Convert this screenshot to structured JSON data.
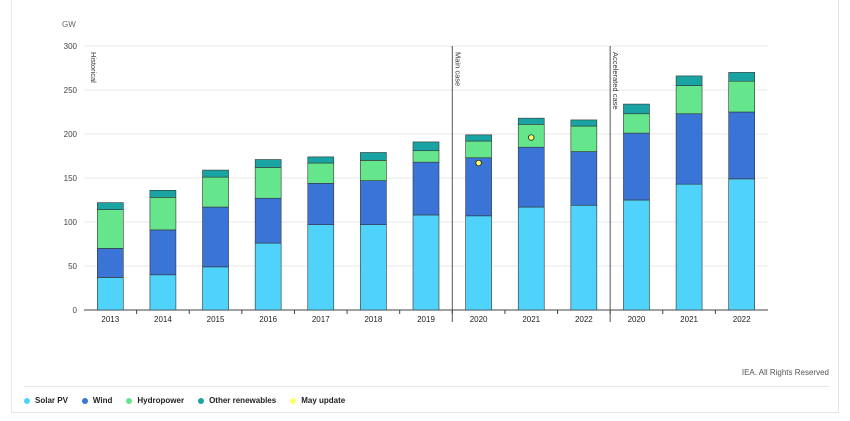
{
  "chart_data": {
    "type": "bar",
    "stacked": true,
    "ylabel": "GW",
    "ylim": [
      0,
      300
    ],
    "yticks": [
      0,
      50,
      100,
      150,
      200,
      250,
      300
    ],
    "grid": true,
    "legend_position": "bottom-left",
    "groups": [
      {
        "label": "Historical",
        "categories": [
          "2013",
          "2014",
          "2015",
          "2016",
          "2017",
          "2018",
          "2019"
        ]
      },
      {
        "label": "Main case",
        "categories": [
          "2020",
          "2021",
          "2022"
        ]
      },
      {
        "label": "Accelerated case",
        "categories": [
          "2020",
          "2021",
          "2022"
        ]
      }
    ],
    "categories": [
      "2013",
      "2014",
      "2015",
      "2016",
      "2017",
      "2018",
      "2019",
      "2020",
      "2021",
      "2022",
      "2020",
      "2021",
      "2022"
    ],
    "series": [
      {
        "name": "Solar PV",
        "color": "#4fd3fb",
        "values": [
          37,
          40,
          49,
          76,
          97,
          97,
          108,
          107,
          117,
          119,
          125,
          143,
          149
        ]
      },
      {
        "name": "Wind",
        "color": "#3a74d6",
        "values": [
          33,
          51,
          68,
          51,
          47,
          50,
          60,
          66,
          68,
          61,
          76,
          80,
          76
        ]
      },
      {
        "name": "Hydropower",
        "color": "#66e68c",
        "values": [
          44,
          37,
          34,
          35,
          23,
          23,
          13,
          19,
          26,
          29,
          22,
          32,
          35
        ]
      },
      {
        "name": "Other renewables",
        "color": "#1aa3a3",
        "values": [
          8,
          8,
          8,
          9,
          7,
          9,
          10,
          7,
          7,
          7,
          11,
          11,
          10
        ]
      }
    ],
    "may_update": {
      "name": "May update",
      "color": "#ffff66",
      "points": [
        {
          "index": 7,
          "value": 167
        },
        {
          "index": 8,
          "value": 196
        }
      ]
    }
  },
  "credit": "IEA. All Rights Reserved",
  "legend": [
    {
      "label": "Solar PV",
      "color": "#4fd3fb"
    },
    {
      "label": "Wind",
      "color": "#3a74d6"
    },
    {
      "label": "Hydropower",
      "color": "#66e68c"
    },
    {
      "label": "Other renewables",
      "color": "#1aa3a3"
    },
    {
      "label": "May update",
      "color": "#ffff66"
    }
  ]
}
